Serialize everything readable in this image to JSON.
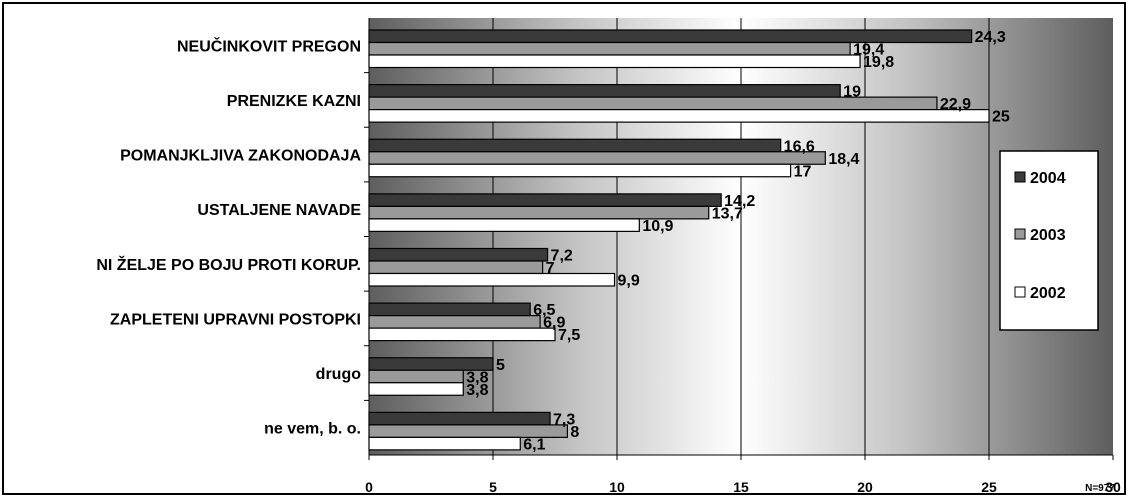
{
  "chart_data": {
    "type": "bar",
    "orientation": "horizontal",
    "categories": [
      "NEUČINKOVIT PREGON",
      "PRENIZKE KAZNI",
      "POMANJKLJIVA ZAKONODAJA",
      "USTALJENE NAVADE",
      "NI ŽELJE PO BOJU PROTI KORUP.",
      "ZAPLETENI UPRAVNI POSTOPKI",
      "drugo",
      "ne vem, b. o."
    ],
    "series": [
      {
        "name": "2004",
        "color": "#3a3a3a",
        "values": [
          24.3,
          19,
          16.6,
          14.2,
          7.2,
          6.5,
          5,
          7.3
        ],
        "labels": [
          "24,3",
          "19",
          "16,6",
          "14,2",
          "7,2",
          "6,5",
          "5",
          "7,3"
        ]
      },
      {
        "name": "2003",
        "color": "#9a9a9a",
        "values": [
          19.4,
          22.9,
          18.4,
          13.7,
          7,
          6.9,
          3.8,
          8
        ],
        "labels": [
          "19,4",
          "22,9",
          "18,4",
          "13,7",
          "7",
          "6,9",
          "3,8",
          "8"
        ]
      },
      {
        "name": "2002",
        "color": "#ffffff",
        "values": [
          19.8,
          25,
          17,
          10.9,
          9.9,
          7.5,
          3.8,
          6.1
        ],
        "labels": [
          "19,8",
          "25",
          "17",
          "10,9",
          "9,9",
          "7,5",
          "3,8",
          "6,1"
        ]
      }
    ],
    "xlim": [
      0,
      30
    ],
    "xticks": [
      "0",
      "5",
      "10",
      "15",
      "20",
      "25",
      "30"
    ],
    "grid": true,
    "legend_position": "right",
    "note": "N=977"
  }
}
